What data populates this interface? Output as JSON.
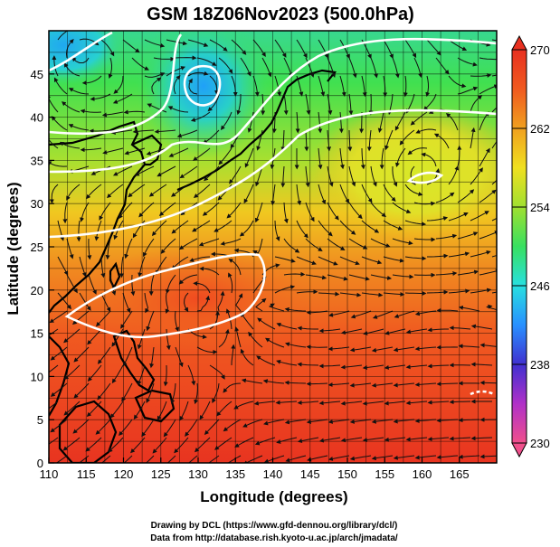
{
  "title": "GSM 18Z06Nov2023 (500.0hPa)",
  "map": {
    "xlabel": "Longitude (degrees)",
    "ylabel": "Latitude  (degrees)",
    "lon_range": [
      110,
      170
    ],
    "lat_range": [
      0,
      50
    ],
    "lon_ticks": [
      "110",
      "115",
      "120",
      "125",
      "130",
      "135",
      "140",
      "145",
      "150",
      "155",
      "160",
      "165"
    ],
    "lat_ticks": [
      "0",
      "5",
      "10",
      "15",
      "20",
      "25",
      "30",
      "35",
      "40",
      "45"
    ],
    "field": "temperature shading with streamlines and white contours"
  },
  "colorbar": {
    "min": 230,
    "max": 270,
    "tick_labels": [
      "270",
      "262",
      "254",
      "246",
      "238",
      "230"
    ],
    "colors": [
      "#f0508c",
      "#b030c8",
      "#4030d0",
      "#2890ff",
      "#28e0e0",
      "#38e060",
      "#a0e030",
      "#f0e020",
      "#f0a020",
      "#f05a20",
      "#e83020"
    ]
  },
  "credits": {
    "line1": "Drawing by DCL (https://www.gfd-dennou.org/library/dcl/)",
    "line2": "Data from http://database.rish.kyoto-u.ac.jp/arch/jmadata/"
  }
}
